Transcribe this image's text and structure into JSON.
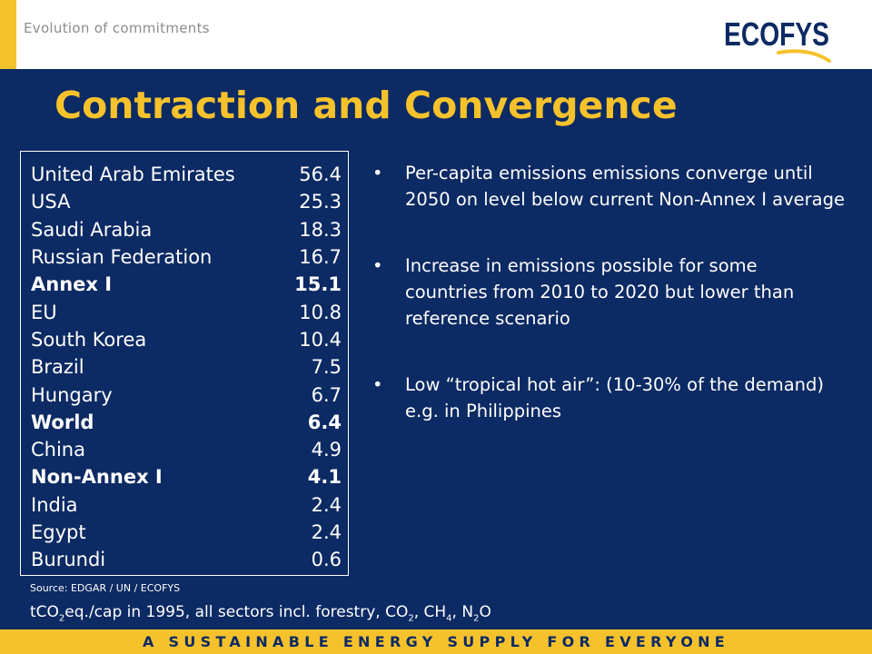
{
  "header": {
    "subtitle": "Evolution of commitments",
    "logo_text": "ECOFYS"
  },
  "title": "Contraction and Convergence",
  "table": {
    "rows": [
      {
        "country": "United Arab Emirates",
        "value": "56.4",
        "bold": false
      },
      {
        "country": "USA",
        "value": "25.3",
        "bold": false
      },
      {
        "country": "Saudi Arabia",
        "value": "18.3",
        "bold": false
      },
      {
        "country": "Russian Federation",
        "value": "16.7",
        "bold": false
      },
      {
        "country": "Annex I",
        "value": "15.1",
        "bold": true
      },
      {
        "country": "EU",
        "value": "10.8",
        "bold": false
      },
      {
        "country": "South Korea",
        "value": "10.4",
        "bold": false
      },
      {
        "country": "Brazil",
        "value": "7.5",
        "bold": false
      },
      {
        "country": "Hungary",
        "value": "6.7",
        "bold": false
      },
      {
        "country": "World",
        "value": "6.4",
        "bold": true
      },
      {
        "country": "China",
        "value": "4.9",
        "bold": false
      },
      {
        "country": "Non-Annex I",
        "value": "4.1",
        "bold": true
      },
      {
        "country": "India",
        "value": "2.4",
        "bold": false
      },
      {
        "country": "Egypt",
        "value": "2.4",
        "bold": false
      },
      {
        "country": "Burundi",
        "value": "0.6",
        "bold": false
      }
    ]
  },
  "source": "Source: EDGAR / UN / ECOFYS",
  "units": {
    "t1": "tCO",
    "s1": "2",
    "t2": "eq./cap in 1995, all sectors incl. forestry, CO",
    "s2": "2",
    "t3": ", CH",
    "s3": "4",
    "t4": ", N",
    "s4": "2",
    "t5": "O"
  },
  "bullets": [
    "Per-capita emissions emissions converge until 2050 on level below current Non-Annex I average",
    "Increase in emissions possible for some countries from 2010 to 2020 but lower than reference scenario",
    "Low “tropical hot air”: (10-30% of the demand) e.g. in Philippines"
  ],
  "bullet_symbol": "•",
  "footer": {
    "tagline": "A SUSTAINABLE ENERGY SUPPLY FOR EVERYONE"
  },
  "colors": {
    "background": "#0c2a63",
    "accent": "#f6c22c",
    "text": "#ffffff"
  }
}
